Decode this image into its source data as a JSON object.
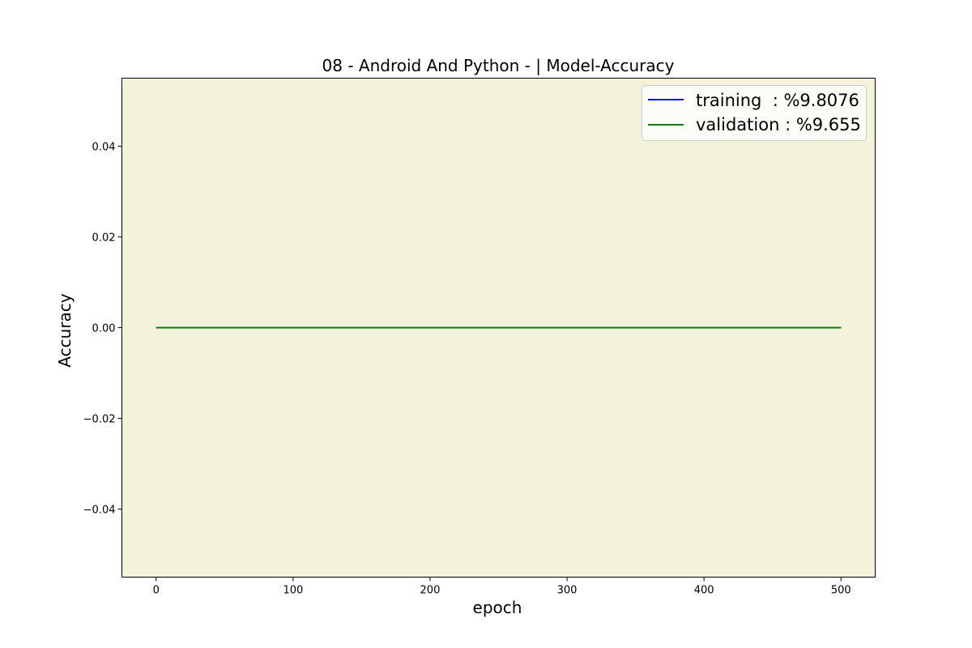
{
  "chart_data": {
    "type": "line",
    "title": "08 - Android And Python - | Model-Accuracy",
    "xlabel": "epoch",
    "ylabel": "Accuracy",
    "xlim": [
      -25,
      525
    ],
    "ylim": [
      -0.055,
      0.055
    ],
    "x_ticks": [
      0,
      100,
      200,
      300,
      400,
      500
    ],
    "x_tick_labels": [
      "0",
      "100",
      "200",
      "300",
      "400",
      "500"
    ],
    "y_ticks": [
      0.04,
      0.02,
      0.0,
      -0.02,
      -0.04
    ],
    "y_tick_labels": [
      "0.04",
      "0.02",
      "0.00",
      "−0.02",
      "−0.04"
    ],
    "grid": false,
    "legend_position": "top-right",
    "plot_background": "#f3f3dc",
    "series": [
      {
        "name": "training  : %9.8076",
        "color": "#0000ff",
        "x": [
          0,
          500
        ],
        "y": [
          0,
          0
        ]
      },
      {
        "name": "validation : %9.655",
        "color": "#008000",
        "x": [
          0,
          500
        ],
        "y": [
          0,
          0
        ]
      }
    ]
  }
}
